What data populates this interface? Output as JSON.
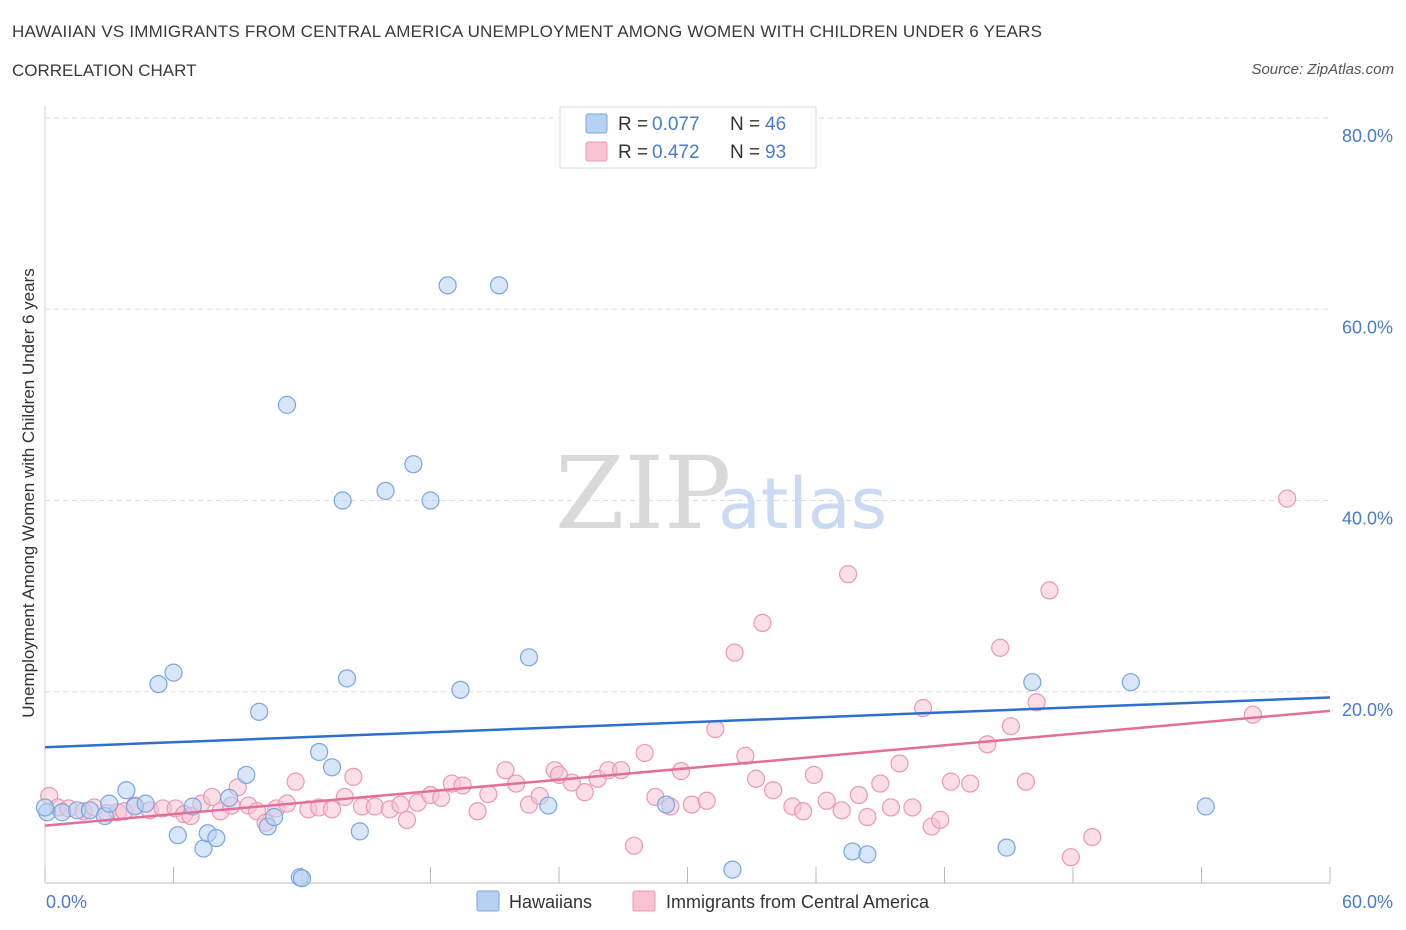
{
  "header": {
    "title": "HAWAIIAN VS IMMIGRANTS FROM CENTRAL AMERICA UNEMPLOYMENT AMONG WOMEN WITH CHILDREN UNDER 6 YEARS",
    "subtitle": "CORRELATION CHART",
    "source": "Source: ZipAtlas.com"
  },
  "watermark": {
    "zip": "ZIP",
    "atlas": "atlas"
  },
  "colors": {
    "hawaiians_fill": "#b7d1f3",
    "hawaiians_stroke": "#7aa6e0",
    "hawaiians_line": "#2f6fcc",
    "immigrants_fill": "#f7c3d1",
    "immigrants_stroke": "#ec98b2",
    "immigrants_line": "#e36f98",
    "grid": "#dddddd",
    "tick_label": "#4a7cc9"
  },
  "legend": {
    "rows": [
      {
        "r_label": "R = ",
        "r_value": "0.077",
        "n_label": "N = ",
        "n_value": "46"
      },
      {
        "r_label": "R = ",
        "r_value": "0.472",
        "n_label": "N = ",
        "n_value": "93"
      }
    ],
    "placement": "top-center"
  },
  "chart_data": {
    "type": "scatter",
    "title": "HAWAIIAN VS IMMIGRANTS FROM CENTRAL AMERICA UNEMPLOYMENT AMONG WOMEN WITH CHILDREN UNDER 6 YEARS",
    "subtitle": "CORRELATION CHART",
    "xlabel": "",
    "ylabel": "Unemployment Among Women with Children Under 6 years",
    "xlim": [
      0,
      60
    ],
    "ylim": [
      0,
      80
    ],
    "x_tick_labels": [
      "0.0%",
      "60.0%"
    ],
    "y_ticks": [
      20,
      40,
      60,
      80
    ],
    "y_tick_labels": [
      "20.0%",
      "40.0%",
      "60.0%",
      "80.0%"
    ],
    "grid": true,
    "series": [
      {
        "name": "Hawaiians",
        "R": 0.077,
        "N": 46,
        "trend": {
          "x": [
            0,
            60
          ],
          "y": [
            14.2,
            19.4
          ]
        },
        "points": [
          [
            0.1,
            7.4
          ],
          [
            0.8,
            7.4
          ],
          [
            1.5,
            7.6
          ],
          [
            2.1,
            7.6
          ],
          [
            2.8,
            7.0
          ],
          [
            3.0,
            8.3
          ],
          [
            3.8,
            9.7
          ],
          [
            4.2,
            8.0
          ],
          [
            4.7,
            8.3
          ],
          [
            5.3,
            20.8
          ],
          [
            6.0,
            22.0
          ],
          [
            6.2,
            5.0
          ],
          [
            6.9,
            8.0
          ],
          [
            7.4,
            3.6
          ],
          [
            7.6,
            5.2
          ],
          [
            8.0,
            4.7
          ],
          [
            8.6,
            8.9
          ],
          [
            9.4,
            11.3
          ],
          [
            10.0,
            17.9
          ],
          [
            10.4,
            5.9
          ],
          [
            10.7,
            6.9
          ],
          [
            11.3,
            50.0
          ],
          [
            11.9,
            0.6
          ],
          [
            12.0,
            0.5
          ],
          [
            12.8,
            13.7
          ],
          [
            13.4,
            12.1
          ],
          [
            13.9,
            40.0
          ],
          [
            14.1,
            21.4
          ],
          [
            14.7,
            5.4
          ],
          [
            15.9,
            41.0
          ],
          [
            17.2,
            43.8
          ],
          [
            18.0,
            40.0
          ],
          [
            18.8,
            62.5
          ],
          [
            19.4,
            20.2
          ],
          [
            21.2,
            62.5
          ],
          [
            22.6,
            23.6
          ],
          [
            23.5,
            8.1
          ],
          [
            29.0,
            8.2
          ],
          [
            32.1,
            1.4
          ],
          [
            37.7,
            3.3
          ],
          [
            38.4,
            3.0
          ],
          [
            44.9,
            3.7
          ],
          [
            46.1,
            21.0
          ],
          [
            50.7,
            21.0
          ],
          [
            54.2,
            8.0
          ],
          [
            0.0,
            7.9
          ]
        ]
      },
      {
        "name": "Immigrants from Central America",
        "R": 0.472,
        "N": 93,
        "trend": {
          "x": [
            0,
            60
          ],
          "y": [
            6.0,
            18.0
          ]
        },
        "points": [
          [
            0.2,
            9.1
          ],
          [
            0.6,
            7.9
          ],
          [
            1.1,
            7.8
          ],
          [
            1.8,
            7.5
          ],
          [
            2.3,
            7.9
          ],
          [
            2.9,
            7.3
          ],
          [
            3.4,
            7.4
          ],
          [
            3.7,
            7.5
          ],
          [
            4.2,
            8.1
          ],
          [
            4.9,
            7.6
          ],
          [
            5.5,
            7.8
          ],
          [
            6.1,
            7.8
          ],
          [
            6.5,
            7.2
          ],
          [
            6.8,
            7.0
          ],
          [
            7.3,
            8.3
          ],
          [
            7.8,
            9.0
          ],
          [
            8.2,
            7.5
          ],
          [
            8.7,
            8.1
          ],
          [
            9.0,
            10.0
          ],
          [
            9.5,
            8.1
          ],
          [
            9.9,
            7.5
          ],
          [
            10.3,
            6.3
          ],
          [
            10.8,
            7.8
          ],
          [
            11.3,
            8.3
          ],
          [
            11.7,
            10.6
          ],
          [
            12.3,
            7.7
          ],
          [
            12.8,
            7.9
          ],
          [
            13.4,
            7.7
          ],
          [
            14.0,
            9.0
          ],
          [
            14.4,
            11.1
          ],
          [
            14.8,
            8.0
          ],
          [
            15.4,
            8.0
          ],
          [
            16.1,
            7.7
          ],
          [
            16.6,
            8.2
          ],
          [
            16.9,
            6.6
          ],
          [
            17.4,
            8.4
          ],
          [
            18.0,
            9.2
          ],
          [
            18.5,
            8.9
          ],
          [
            19.0,
            10.4
          ],
          [
            19.5,
            10.2
          ],
          [
            20.2,
            7.5
          ],
          [
            20.7,
            9.3
          ],
          [
            21.5,
            11.8
          ],
          [
            22.0,
            10.4
          ],
          [
            22.6,
            8.2
          ],
          [
            23.1,
            9.1
          ],
          [
            23.8,
            11.8
          ],
          [
            24.0,
            11.3
          ],
          [
            24.6,
            10.5
          ],
          [
            25.2,
            9.5
          ],
          [
            25.8,
            10.9
          ],
          [
            26.3,
            11.8
          ],
          [
            26.9,
            11.8
          ],
          [
            27.5,
            3.9
          ],
          [
            28.0,
            13.6
          ],
          [
            28.5,
            9.0
          ],
          [
            29.2,
            8.0
          ],
          [
            29.7,
            11.7
          ],
          [
            30.2,
            8.2
          ],
          [
            30.9,
            8.6
          ],
          [
            31.3,
            16.1
          ],
          [
            32.2,
            24.1
          ],
          [
            32.7,
            13.3
          ],
          [
            33.2,
            10.9
          ],
          [
            33.5,
            27.2
          ],
          [
            34.0,
            9.7
          ],
          [
            34.9,
            8.0
          ],
          [
            35.4,
            7.5
          ],
          [
            35.9,
            11.3
          ],
          [
            36.5,
            8.6
          ],
          [
            37.2,
            7.6
          ],
          [
            37.5,
            32.3
          ],
          [
            38.0,
            9.2
          ],
          [
            38.4,
            6.9
          ],
          [
            39.0,
            10.4
          ],
          [
            39.5,
            7.9
          ],
          [
            39.9,
            12.5
          ],
          [
            40.5,
            7.9
          ],
          [
            41.0,
            18.3
          ],
          [
            41.4,
            5.9
          ],
          [
            41.8,
            6.6
          ],
          [
            42.3,
            10.6
          ],
          [
            43.2,
            10.4
          ],
          [
            44.0,
            14.5
          ],
          [
            44.6,
            24.6
          ],
          [
            45.1,
            16.4
          ],
          [
            45.8,
            10.6
          ],
          [
            46.3,
            18.9
          ],
          [
            46.9,
            30.6
          ],
          [
            47.9,
            2.7
          ],
          [
            48.9,
            4.8
          ],
          [
            56.4,
            17.6
          ],
          [
            58.0,
            40.2
          ]
        ]
      }
    ]
  },
  "bottom_legend": {
    "items": [
      {
        "label": "Hawaiians"
      },
      {
        "label": "Immigrants from Central America"
      }
    ]
  }
}
